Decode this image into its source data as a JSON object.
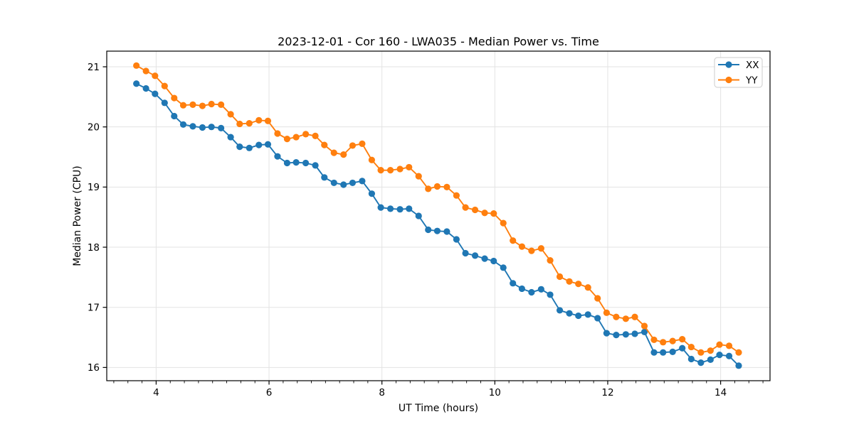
{
  "figure": {
    "background": "#ffffff"
  },
  "chart_data": {
    "type": "line",
    "title": "2023-12-01 - Cor 160 - LWA035 - Median Power vs. Time",
    "xlabel": "UT Time (hours)",
    "ylabel": "Median Power (CPU)",
    "xlim": [
      3.125,
      14.875
    ],
    "ylim": [
      15.78,
      21.26
    ],
    "x_major_ticks": [
      4,
      6,
      8,
      10,
      12,
      14
    ],
    "x_minor_tick_step": 0.25,
    "y_major_ticks": [
      16,
      17,
      18,
      19,
      20,
      21
    ],
    "grid": "major-both",
    "grid_color": "#e3e3e3",
    "spine_color": "#000000",
    "legend_position": "upper-right",
    "marker": "circle",
    "x": [
      3.65,
      3.82,
      3.98,
      4.15,
      4.32,
      4.48,
      4.65,
      4.82,
      4.98,
      5.15,
      5.32,
      5.48,
      5.65,
      5.82,
      5.98,
      6.15,
      6.32,
      6.48,
      6.65,
      6.82,
      6.98,
      7.15,
      7.32,
      7.48,
      7.65,
      7.82,
      7.98,
      8.15,
      8.32,
      8.48,
      8.65,
      8.82,
      8.98,
      9.15,
      9.32,
      9.48,
      9.65,
      9.82,
      9.98,
      10.15,
      10.32,
      10.48,
      10.65,
      10.82,
      10.98,
      11.15,
      11.32,
      11.48,
      11.65,
      11.82,
      11.98,
      12.15,
      12.32,
      12.48,
      12.65,
      12.82,
      12.98,
      13.15,
      13.32,
      13.48,
      13.65,
      13.82,
      13.98,
      14.15,
      14.32
    ],
    "series": [
      {
        "name": "XX",
        "color": "#1f77b4",
        "values": [
          20.72,
          20.64,
          20.55,
          20.4,
          20.18,
          20.04,
          20.01,
          19.99,
          20.0,
          19.98,
          19.83,
          19.67,
          19.65,
          19.7,
          19.71,
          19.51,
          19.4,
          19.41,
          19.4,
          19.36,
          19.16,
          19.07,
          19.04,
          19.07,
          19.1,
          18.89,
          18.66,
          18.64,
          18.63,
          18.64,
          18.52,
          18.29,
          18.27,
          18.26,
          18.13,
          17.9,
          17.86,
          17.81,
          17.77,
          17.66,
          17.4,
          17.31,
          17.25,
          17.3,
          17.21,
          16.95,
          16.9,
          16.86,
          16.88,
          16.82,
          16.57,
          16.54,
          16.55,
          16.56,
          16.59,
          16.25,
          16.25,
          16.26,
          16.32,
          16.14,
          16.08,
          16.13,
          16.21,
          16.19,
          16.03
        ]
      },
      {
        "name": "YY",
        "color": "#ff7f0e",
        "values": [
          21.02,
          20.93,
          20.85,
          20.68,
          20.48,
          20.36,
          20.37,
          20.35,
          20.38,
          20.37,
          20.21,
          20.05,
          20.06,
          20.11,
          20.1,
          19.89,
          19.8,
          19.83,
          19.88,
          19.85,
          19.7,
          19.57,
          19.54,
          19.69,
          19.72,
          19.45,
          19.28,
          19.28,
          19.3,
          19.33,
          19.18,
          18.97,
          19.01,
          19.0,
          18.86,
          18.66,
          18.62,
          18.57,
          18.56,
          18.4,
          18.11,
          18.01,
          17.94,
          17.98,
          17.78,
          17.51,
          17.43,
          17.39,
          17.33,
          17.15,
          16.91,
          16.84,
          16.81,
          16.84,
          16.69,
          16.46,
          16.42,
          16.44,
          16.47,
          16.34,
          16.25,
          16.28,
          16.38,
          16.36,
          16.25
        ]
      }
    ]
  }
}
